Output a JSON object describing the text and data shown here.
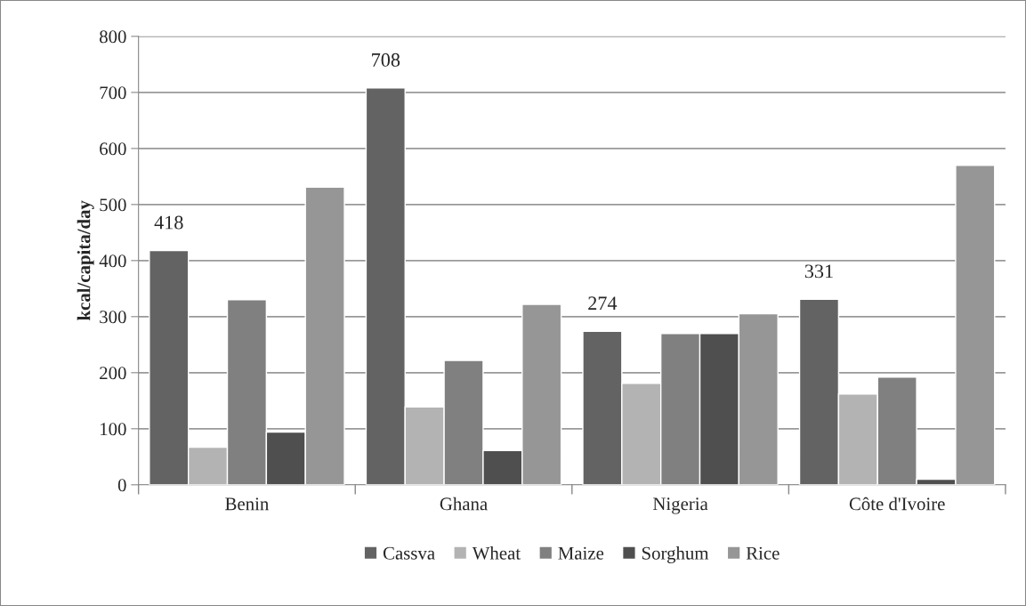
{
  "chart_data": {
    "type": "bar",
    "ylabel": "kcal/capita/day",
    "categories": [
      "Benin",
      "Ghana",
      "Nigeria",
      "Côte d'Ivoire"
    ],
    "series": [
      {
        "name": "Cassva",
        "color": "#636363",
        "values": [
          418,
          708,
          274,
          331
        ],
        "value_labels": [
          "418",
          "708",
          "274",
          "331"
        ]
      },
      {
        "name": "Wheat",
        "color": "#b3b3b3",
        "values": [
          67,
          139,
          181,
          162
        ]
      },
      {
        "name": "Maize",
        "color": "#808080",
        "values": [
          330,
          222,
          270,
          192
        ]
      },
      {
        "name": "Sorghum",
        "color": "#4f4f4f",
        "values": [
          94,
          61,
          270,
          10
        ]
      },
      {
        "name": "Rice",
        "color": "#969696",
        "values": [
          531,
          322,
          305,
          570
        ]
      }
    ],
    "ylim": [
      0,
      800
    ],
    "yticks": [
      0,
      100,
      200,
      300,
      400,
      500,
      600,
      700,
      800
    ],
    "grid": "y",
    "legend": "bottom"
  }
}
